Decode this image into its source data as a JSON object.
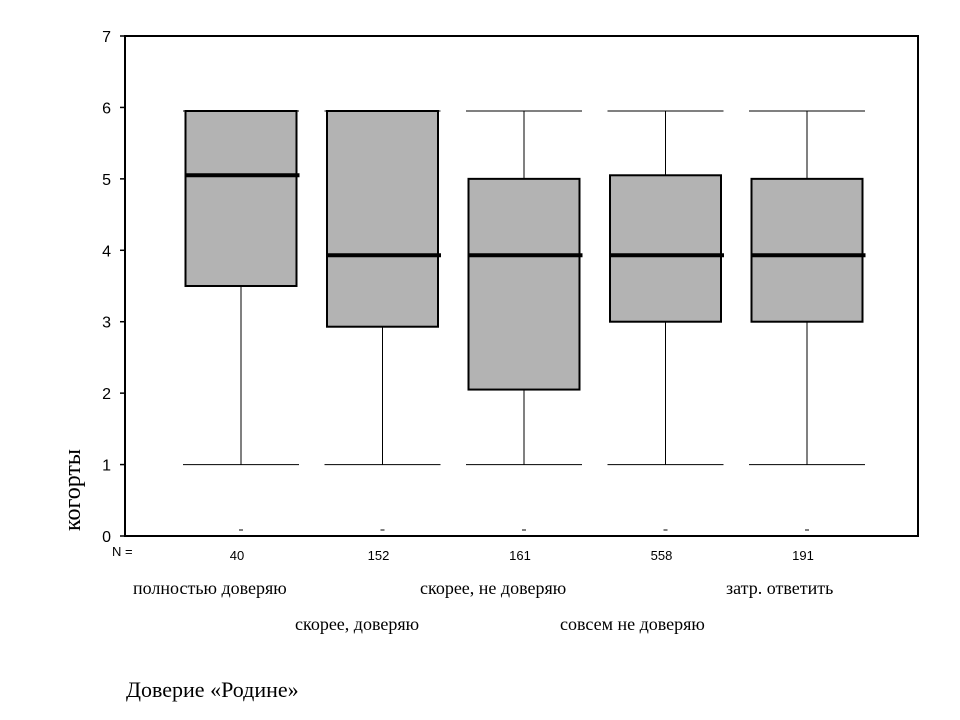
{
  "chart_data": {
    "type": "boxplot",
    "xlabel": "Доверие «Родине»",
    "ylabel": "когорты",
    "ylim": [
      0,
      7
    ],
    "yticks": [
      "0",
      "1",
      "2",
      "3",
      "4",
      "5",
      "6",
      "7"
    ],
    "n_label": "N =",
    "grid": false,
    "box_color": "#b3b3b3",
    "categories": [
      "полностью доверяю",
      "скорее, доверяю",
      "скорее, не доверяю",
      "совсем не доверяю",
      "затр. ответить"
    ],
    "n": [
      "40",
      "152",
      "161",
      "558",
      "191"
    ],
    "boxes": [
      {
        "whisker_low": 1,
        "q1": 3.5,
        "median": 5.05,
        "q3": 5.95,
        "whisker_high": 5.95
      },
      {
        "whisker_low": 1,
        "q1": 2.93,
        "median": 3.93,
        "q3": 5.95,
        "whisker_high": 5.95
      },
      {
        "whisker_low": 1,
        "q1": 2.05,
        "median": 3.93,
        "q3": 5.0,
        "whisker_high": 5.95
      },
      {
        "whisker_low": 1,
        "q1": 3.0,
        "median": 3.93,
        "q3": 5.05,
        "whisker_high": 5.95
      },
      {
        "whisker_low": 1,
        "q1": 3.0,
        "median": 3.93,
        "q3": 5.0,
        "whisker_high": 5.95
      }
    ]
  }
}
